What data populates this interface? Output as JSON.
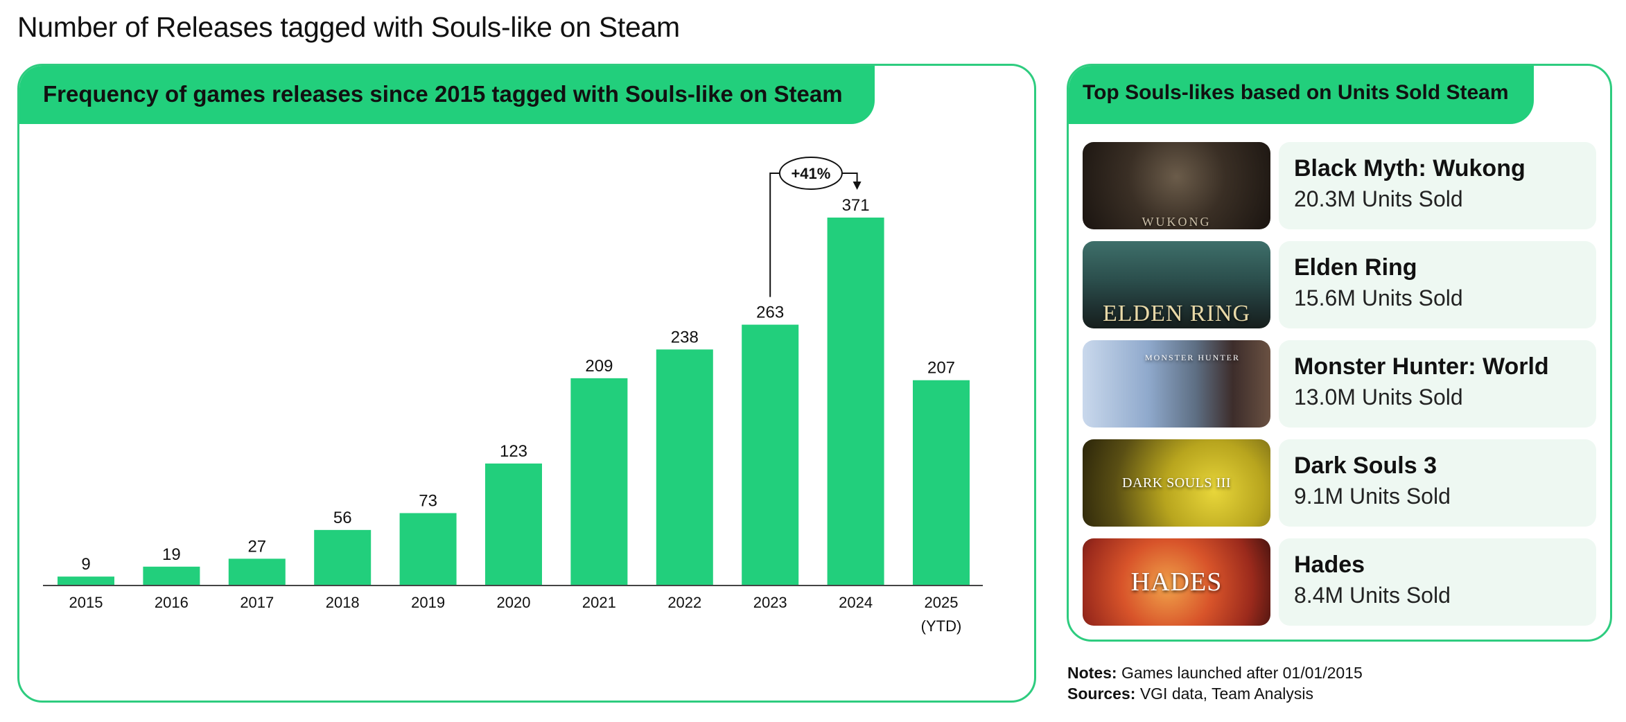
{
  "page_title": "Number of Releases tagged with Souls-like on Steam",
  "chart_panel": {
    "title": "Frequency of games releases since 2015 tagged with Souls-like on Steam"
  },
  "chart_data": {
    "type": "bar",
    "title": "Frequency of games releases since 2015 tagged with Souls-like on Steam",
    "categories": [
      "2015",
      "2016",
      "2017",
      "2018",
      "2019",
      "2020",
      "2021",
      "2022",
      "2023",
      "2024",
      "2025 (YTD)"
    ],
    "values": [
      9,
      19,
      27,
      56,
      73,
      123,
      209,
      238,
      263,
      371,
      207
    ],
    "xlabel": "",
    "ylabel": "",
    "ylim": [
      0,
      371
    ],
    "grid": false,
    "color": "#22cf7c",
    "annotation": {
      "label": "+41%",
      "from": "2023",
      "to": "2024"
    }
  },
  "side_panel": {
    "title": "Top Souls-likes based on Units Sold Steam",
    "games": [
      {
        "name": "Black Myth: Wukong",
        "units": "20.3M Units Sold",
        "logo": "WUKONG"
      },
      {
        "name": "Elden Ring",
        "units": "15.6M Units Sold",
        "logo": "ELDEN RING"
      },
      {
        "name": "Monster Hunter: World",
        "units": "13.0M Units Sold",
        "logo": "MONSTER HUNTER"
      },
      {
        "name": "Dark Souls 3",
        "units": "9.1M Units Sold",
        "logo": "DARK SOULS III"
      },
      {
        "name": "Hades",
        "units": "8.4M Units Sold",
        "logo": "HADES"
      }
    ]
  },
  "notes": {
    "notes_label": "Notes:",
    "notes_text": "Games launched after 01/01/2015",
    "sources_label": "Sources:",
    "sources_text": "VGI data, Team Analysis"
  },
  "colors": {
    "accent": "#22cf7c",
    "border": "#2ecc7f",
    "info_bg": "#eef8f2"
  }
}
